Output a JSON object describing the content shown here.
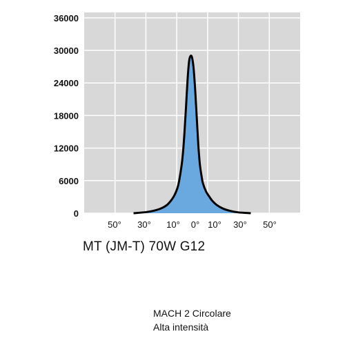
{
  "chart_data": {
    "type": "area",
    "title": "MT (JM-T) 70W  G12",
    "xlabel": "",
    "ylabel": "",
    "x_tick_labels": [
      "50°",
      "30°",
      "10°",
      "0°",
      "10°",
      "30°",
      "50°"
    ],
    "y_ticks": [
      0,
      6000,
      12000,
      18000,
      24000,
      30000,
      36000
    ],
    "ylim": [
      0,
      37000
    ],
    "xlim": [
      -70,
      70
    ],
    "grid": true,
    "colors": {
      "fill": "#6aa9e0",
      "line": "#000000",
      "background": "#d8d8d8",
      "grid": "#ffffff"
    },
    "series": [
      {
        "x": [
          -38,
          -30,
          -25,
          -20,
          -16,
          -13,
          -11,
          -9,
          -7,
          -6,
          -5,
          -4,
          -3,
          -2,
          -1,
          0,
          1,
          2,
          3,
          4,
          5,
          6,
          7,
          9,
          11,
          13,
          16,
          20,
          25,
          30,
          38
        ],
        "values": [
          0,
          200,
          450,
          900,
          1600,
          2600,
          3600,
          5200,
          8500,
          11000,
          14800,
          19500,
          24500,
          28000,
          29000,
          28600,
          26500,
          22500,
          17500,
          12500,
          9000,
          7000,
          5500,
          4000,
          3100,
          2300,
          1500,
          850,
          400,
          150,
          0
        ]
      }
    ]
  },
  "footer": {
    "line1": "MACH 2 Circolare",
    "line2": "Alta intensità"
  }
}
